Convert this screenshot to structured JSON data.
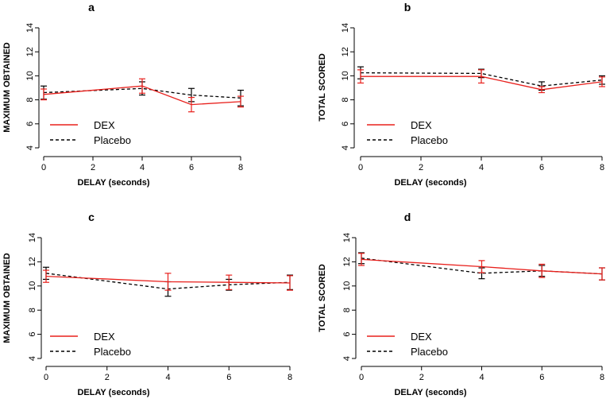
{
  "colors": {
    "dex": "#e8201c",
    "placebo": "#000000"
  },
  "chart_data": [
    {
      "panel": "a",
      "type": "line",
      "xlabel": "DELAY (seconds)",
      "ylabel": "MAXIMUM OBTAINED",
      "xlim": [
        0,
        8
      ],
      "ylim": [
        4,
        14
      ],
      "xticks": [
        "0",
        "2",
        "4",
        "6",
        "8"
      ],
      "yticks": [
        "4",
        "6",
        "8",
        "10",
        "12",
        "14"
      ],
      "x": [
        0,
        4,
        6,
        8
      ],
      "series": [
        {
          "name": "DEX",
          "style": "solid",
          "values": [
            8.45,
            9.15,
            7.6,
            7.85
          ],
          "err": [
            0.45,
            0.6,
            0.6,
            0.45
          ]
        },
        {
          "name": "Placebo",
          "style": "dashed",
          "values": [
            8.6,
            8.95,
            8.4,
            8.15
          ],
          "err": [
            0.55,
            0.55,
            0.55,
            0.65
          ]
        }
      ],
      "legend": {
        "position": "bottom-left",
        "entries": [
          "DEX",
          "Placebo"
        ]
      }
    },
    {
      "panel": "b",
      "type": "line",
      "xlabel": "DELAY (seconds)",
      "ylabel": "TOTAL SCORED",
      "xlim": [
        0,
        8
      ],
      "ylim": [
        4,
        14
      ],
      "xticks": [
        "0",
        "2",
        "4",
        "6",
        "8"
      ],
      "yticks": [
        "4",
        "6",
        "8",
        "10",
        "12",
        "14"
      ],
      "x": [
        0,
        4,
        6,
        8
      ],
      "series": [
        {
          "name": "DEX",
          "style": "solid",
          "values": [
            9.95,
            9.95,
            8.85,
            9.5
          ],
          "err": [
            0.55,
            0.55,
            0.25,
            0.4
          ]
        },
        {
          "name": "Placebo",
          "style": "dashed",
          "values": [
            10.25,
            10.2,
            9.15,
            9.65
          ],
          "err": [
            0.5,
            0.35,
            0.35,
            0.35
          ]
        }
      ],
      "legend": {
        "position": "bottom-left",
        "entries": [
          "DEX",
          "Placebo"
        ]
      }
    },
    {
      "panel": "c",
      "type": "line",
      "xlabel": "DELAY (seconds)",
      "ylabel": "MAXIMUM OBTAINED",
      "xlim": [
        0,
        8
      ],
      "ylim": [
        4,
        14
      ],
      "xticks": [
        "0",
        "2",
        "4",
        "6",
        "8"
      ],
      "yticks": [
        "4",
        "6",
        "8",
        "10",
        "12",
        "14"
      ],
      "x": [
        0,
        4,
        6,
        8
      ],
      "series": [
        {
          "name": "DEX",
          "style": "solid",
          "values": [
            10.8,
            10.35,
            10.3,
            10.25
          ],
          "err": [
            0.5,
            0.7,
            0.6,
            0.6
          ]
        },
        {
          "name": "Placebo",
          "style": "dashed",
          "values": [
            11.05,
            9.75,
            10.1,
            10.3
          ],
          "err": [
            0.5,
            0.6,
            0.45,
            0.6
          ]
        }
      ],
      "legend": {
        "position": "bottom-left",
        "entries": [
          "DEX",
          "Placebo"
        ]
      }
    },
    {
      "panel": "d",
      "type": "line",
      "xlabel": "DELAY (seconds)",
      "ylabel": "TOTAL SCORED",
      "xlim": [
        0,
        8
      ],
      "ylim": [
        4,
        14
      ],
      "xticks": [
        "0",
        "2",
        "4",
        "6",
        "8"
      ],
      "yticks": [
        "4",
        "6",
        "8",
        "10",
        "12",
        "14"
      ],
      "x": [
        0,
        4,
        6,
        8
      ],
      "series": [
        {
          "name": "DEX",
          "style": "solid",
          "values": [
            12.2,
            11.6,
            11.25,
            11.0
          ],
          "err": [
            0.5,
            0.5,
            0.55,
            0.5
          ]
        },
        {
          "name": "Placebo",
          "style": "dashed",
          "values": [
            12.3,
            11.05,
            11.25,
            11.0
          ],
          "err": [
            0.45,
            0.45,
            0.45,
            0.5
          ]
        }
      ],
      "legend": {
        "position": "bottom-left",
        "entries": [
          "DEX",
          "Placebo"
        ]
      }
    }
  ]
}
